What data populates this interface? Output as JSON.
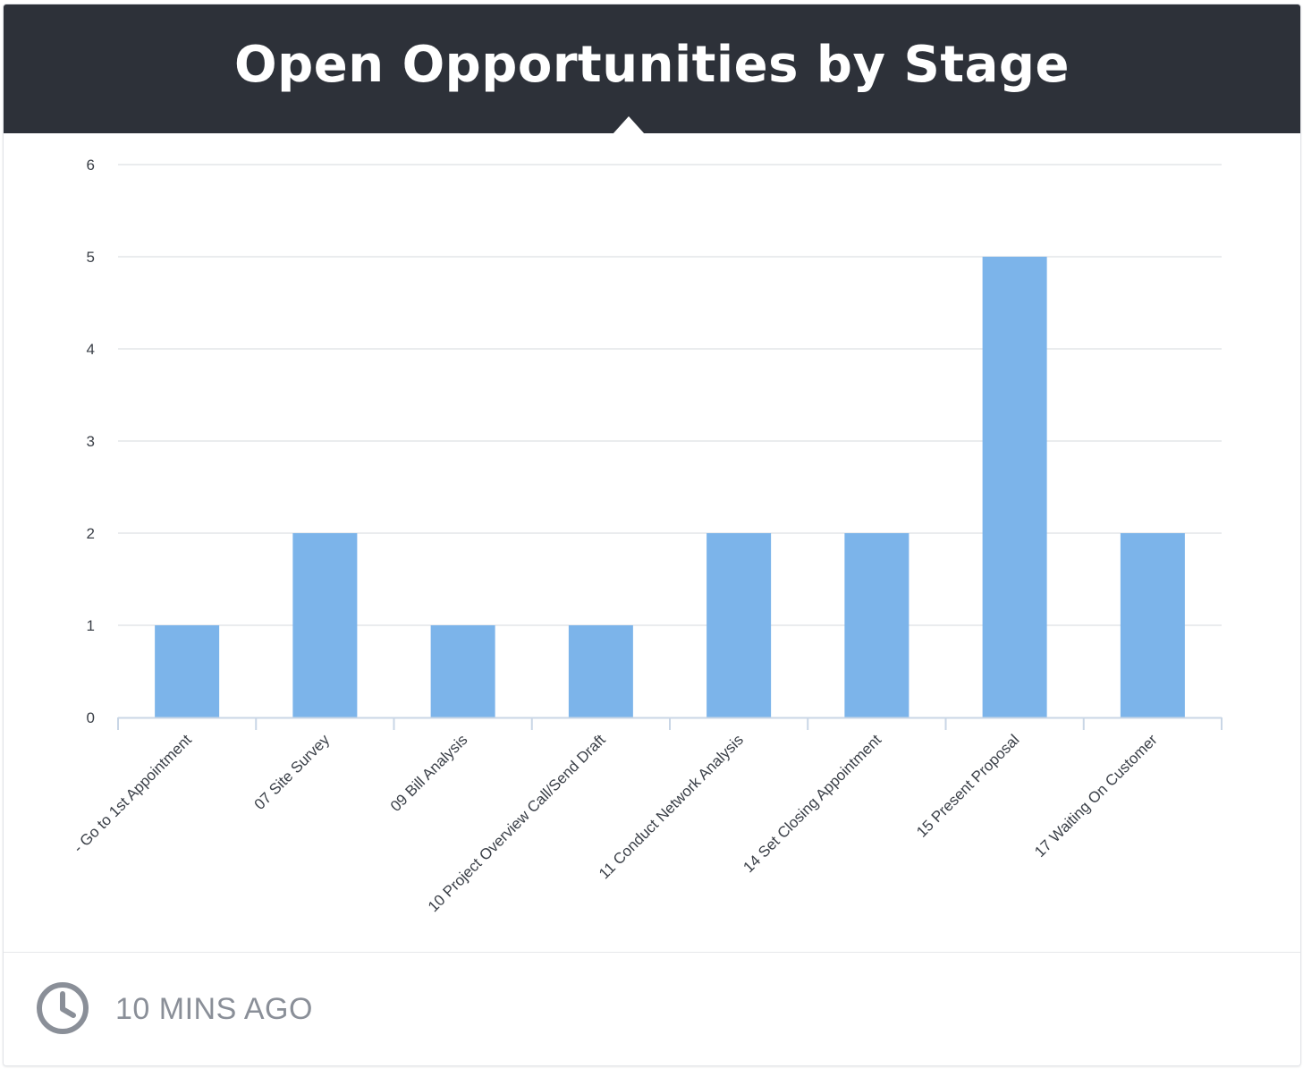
{
  "header": {
    "title": "Open Opportunities by Stage"
  },
  "footer": {
    "updated": "10 MINS AGO",
    "icon": "clock-icon"
  },
  "colors": {
    "header_bg": "#2d3139",
    "bar": "#7cb4ea",
    "grid": "#e3e5e8",
    "axis_text": "#3a3f47",
    "footer_text": "#8a8f98"
  },
  "chart_data": {
    "type": "bar",
    "categories": [
      "- Go to 1st Appointment",
      "07 Site Survey",
      "09 Bill Analysis",
      "10 Project Overview Call/Send Draft",
      "11 Conduct Network Analysis",
      "14 Set Closing Appointment",
      "15 Present Proposal",
      "17 Waiting On Customer"
    ],
    "values": [
      1,
      2,
      1,
      1,
      2,
      2,
      5,
      2
    ],
    "yticks": [
      0,
      1,
      2,
      3,
      4,
      5,
      6
    ],
    "ylim": [
      0,
      6
    ],
    "grid": true,
    "legend": "none",
    "title": "",
    "xlabel": "",
    "ylabel": ""
  }
}
